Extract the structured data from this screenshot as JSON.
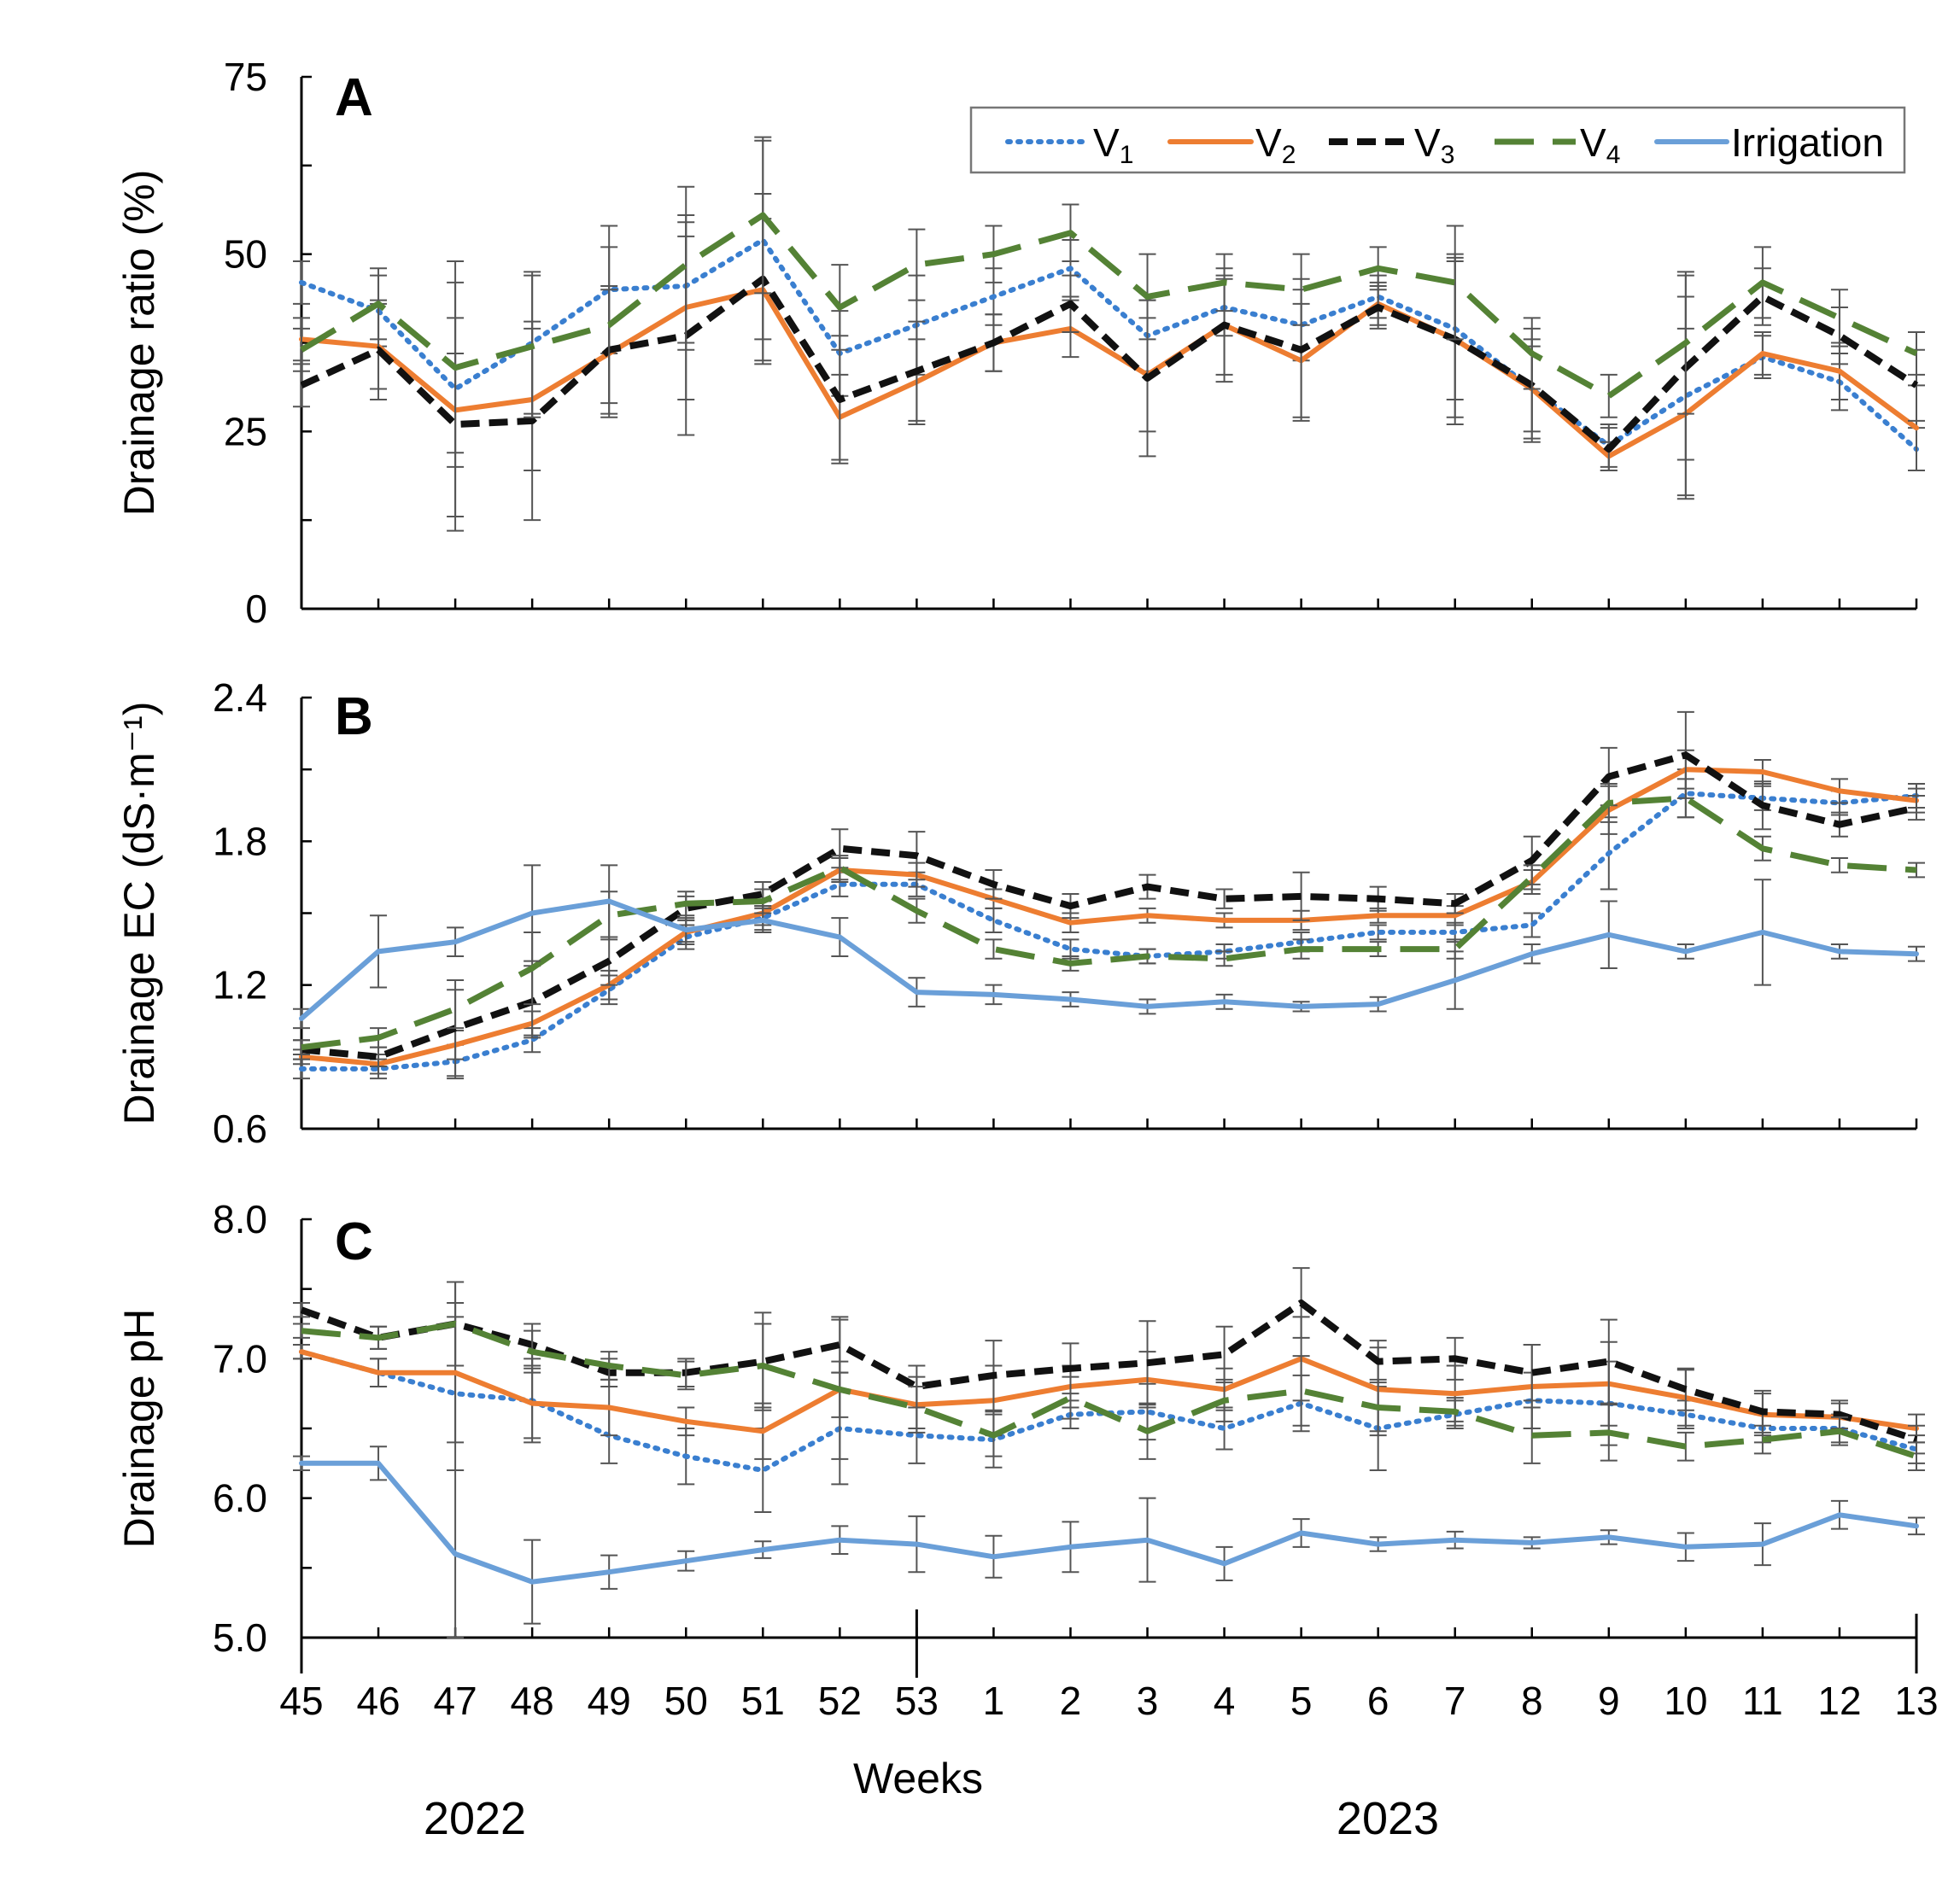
{
  "colors": {
    "V1": "#3a7fd0",
    "V2": "#ed7d31",
    "V3": "#111111",
    "V4": "#548235",
    "Irrigation": "#6a9fd8",
    "axis": "#000000",
    "errorbar": "#555555"
  },
  "xaxis": {
    "title": "Weeks",
    "weeks": [
      "45",
      "46",
      "47",
      "48",
      "49",
      "50",
      "51",
      "52",
      "53",
      "1",
      "2",
      "3",
      "4",
      "5",
      "6",
      "7",
      "8",
      "9",
      "10",
      "11",
      "12",
      "13"
    ],
    "years": [
      "2022",
      "2023"
    ]
  },
  "legend": {
    "items": [
      {
        "key": "V1",
        "label": "V",
        "sub": "1"
      },
      {
        "key": "V2",
        "label": "V",
        "sub": "2"
      },
      {
        "key": "V3",
        "label": "V",
        "sub": "3"
      },
      {
        "key": "V4",
        "label": "V",
        "sub": "4"
      },
      {
        "key": "Irrigation",
        "label": "Irrigation",
        "sub": ""
      }
    ]
  },
  "chart_data": [
    {
      "type": "line",
      "panel": "A",
      "ylabel": "Drainage ratio (%)",
      "ylim": [
        0,
        75
      ],
      "yticks": [
        "0",
        "25",
        "50",
        "75"
      ],
      "ytick_values": [
        0,
        25,
        50,
        75
      ],
      "minor_step": 12.5,
      "series": [
        {
          "name": "V1",
          "values": [
            46,
            42,
            31,
            37.5,
            45,
            45.5,
            52,
            36,
            40,
            44,
            48,
            38.5,
            42.5,
            40,
            44,
            39.5,
            31,
            23,
            30,
            35.5,
            32,
            22.5
          ],
          "err": [
            3,
            5,
            18,
            10,
            9,
            9,
            14,
            6,
            7,
            4,
            4,
            5,
            4,
            5,
            3,
            10,
            7,
            3,
            14,
            3,
            4,
            3
          ]
        },
        {
          "name": "V2",
          "values": [
            38,
            37,
            28,
            29.5,
            36,
            42.5,
            45,
            27,
            32,
            37.5,
            39.5,
            33,
            40,
            35,
            43,
            38,
            31,
            21.5,
            27.5,
            36,
            33.5,
            25.5
          ],
          "err": [
            3,
            6,
            8,
            10,
            9,
            13,
            10,
            6,
            6,
            4,
            4,
            8,
            7,
            8,
            3,
            11,
            6,
            2,
            12,
            3,
            4,
            6
          ]
        },
        {
          "name": "V3",
          "values": [
            31.5,
            36.5,
            26,
            26.5,
            36.5,
            38.5,
            46.5,
            29.5,
            33.5,
            37.5,
            43,
            32.5,
            40,
            36.5,
            42.5,
            38,
            31.5,
            22.5,
            34,
            44,
            38.5,
            31.5
          ],
          "err": [
            3,
            7,
            15,
            14,
            9,
            14,
            12,
            9,
            7,
            4,
            4,
            11,
            8,
            10,
            3,
            12,
            8,
            3,
            13,
            4,
            4,
            5
          ]
        },
        {
          "name": "V4",
          "values": [
            36.5,
            43,
            34,
            37,
            40,
            48.5,
            55.5,
            42.5,
            48.5,
            50,
            53,
            44,
            46,
            45,
            48,
            46,
            36,
            30,
            37.5,
            46,
            41,
            36
          ],
          "err": [
            3,
            5,
            12,
            10,
            11,
            11,
            11,
            6,
            5,
            4,
            4,
            6,
            4,
            5,
            3,
            8,
            5,
            3,
            10,
            5,
            4,
            3
          ]
        }
      ]
    },
    {
      "type": "line",
      "panel": "B",
      "ylabel": "Drainage EC (dS·m⁻¹)",
      "ylim": [
        0.6,
        2.4
      ],
      "yticks": [
        "0.6",
        "1.2",
        "1.8",
        "2.4"
      ],
      "ytick_values": [
        0.6,
        1.2,
        1.8,
        2.4
      ],
      "minor_step": 0.3,
      "series": [
        {
          "name": "V1",
          "values": [
            0.85,
            0.85,
            0.88,
            0.97,
            1.18,
            1.4,
            1.48,
            1.62,
            1.62,
            1.47,
            1.35,
            1.32,
            1.34,
            1.38,
            1.42,
            1.42,
            1.45,
            1.75,
            2.0,
            1.98,
            1.96,
            1.99
          ],
          "err": [
            0.04,
            0.04,
            0.07,
            0.05,
            0.06,
            0.05,
            0.05,
            0.05,
            0.05,
            0.05,
            0.04,
            0.03,
            0.03,
            0.04,
            0.03,
            0.04,
            0.05,
            0.15,
            0.1,
            0.05,
            0.05,
            0.05
          ]
        },
        {
          "name": "V2",
          "values": [
            0.9,
            0.87,
            0.95,
            1.04,
            1.2,
            1.42,
            1.5,
            1.68,
            1.66,
            1.56,
            1.46,
            1.49,
            1.47,
            1.47,
            1.49,
            1.49,
            1.63,
            1.93,
            2.1,
            2.09,
            2.01,
            1.97
          ],
          "err": [
            0.03,
            0.04,
            0.06,
            0.05,
            0.06,
            0.05,
            0.05,
            0.05,
            0.05,
            0.04,
            0.04,
            0.03,
            0.03,
            0.04,
            0.03,
            0.04,
            0.05,
            0.1,
            0.08,
            0.05,
            0.05,
            0.05
          ]
        },
        {
          "name": "V3",
          "values": [
            0.93,
            0.9,
            1.02,
            1.13,
            1.3,
            1.52,
            1.58,
            1.77,
            1.74,
            1.62,
            1.53,
            1.61,
            1.56,
            1.57,
            1.56,
            1.54,
            1.72,
            2.07,
            2.16,
            1.95,
            1.87,
            1.94
          ],
          "err": [
            0.04,
            0.04,
            0.2,
            0.15,
            0.1,
            0.05,
            0.05,
            0.08,
            0.1,
            0.06,
            0.05,
            0.05,
            0.04,
            0.1,
            0.05,
            0.04,
            0.1,
            0.12,
            0.18,
            0.1,
            0.05,
            0.05
          ]
        },
        {
          "name": "V4",
          "values": [
            0.94,
            0.98,
            1.1,
            1.27,
            1.49,
            1.54,
            1.55,
            1.69,
            1.51,
            1.35,
            1.29,
            1.32,
            1.31,
            1.35,
            1.35,
            1.35,
            1.65,
            1.96,
            1.98,
            1.77,
            1.7,
            1.68
          ],
          "err": [
            0.03,
            0.04,
            0.08,
            0.15,
            0.1,
            0.05,
            0.05,
            0.05,
            0.05,
            0.04,
            0.03,
            0.03,
            0.03,
            0.04,
            0.03,
            0.04,
            0.05,
            0.08,
            0.08,
            0.05,
            0.03,
            0.03
          ]
        },
        {
          "name": "Irrigation",
          "values": [
            1.06,
            1.34,
            1.38,
            1.5,
            1.55,
            1.43,
            1.47,
            1.4,
            1.17,
            1.16,
            1.14,
            1.11,
            1.13,
            1.11,
            1.12,
            1.22,
            1.33,
            1.41,
            1.34,
            1.42,
            1.34,
            1.33
          ],
          "err": [
            0.04,
            0.15,
            0.06,
            0.2,
            0.15,
            0.05,
            0.05,
            0.08,
            0.06,
            0.04,
            0.03,
            0.03,
            0.03,
            0.02,
            0.03,
            0.12,
            0.04,
            0.14,
            0.03,
            0.22,
            0.03,
            0.03
          ]
        }
      ]
    },
    {
      "type": "line",
      "panel": "C",
      "ylabel": "Drainage pH",
      "ylim": [
        5.0,
        8.0
      ],
      "yticks": [
        "5.0",
        "6.0",
        "7.0",
        "8.0"
      ],
      "ytick_values": [
        5.0,
        6.0,
        7.0,
        8.0
      ],
      "minor_step": 0.5,
      "series": [
        {
          "name": "V1",
          "values": [
            7.05,
            6.9,
            6.75,
            6.7,
            6.45,
            6.3,
            6.2,
            6.5,
            6.45,
            6.42,
            6.6,
            6.62,
            6.5,
            6.68,
            6.5,
            6.6,
            6.7,
            6.68,
            6.6,
            6.5,
            6.5,
            6.35
          ],
          "err": [
            0.05,
            0.1,
            0.55,
            0.3,
            0.2,
            0.2,
            0.3,
            0.4,
            0.2,
            0.2,
            0.1,
            0.2,
            0.15,
            0.2,
            0.3,
            0.1,
            0.2,
            0.3,
            0.1,
            0.1,
            0.1,
            0.1
          ]
        },
        {
          "name": "V2",
          "values": [
            7.05,
            6.9,
            6.9,
            6.68,
            6.65,
            6.55,
            6.48,
            6.78,
            6.67,
            6.7,
            6.8,
            6.85,
            6.78,
            7.0,
            6.78,
            6.75,
            6.8,
            6.82,
            6.72,
            6.6,
            6.58,
            6.5
          ],
          "err": [
            0.05,
            0.1,
            0.5,
            0.25,
            0.2,
            0.1,
            0.2,
            0.5,
            0.2,
            0.25,
            0.15,
            0.2,
            0.15,
            0.3,
            0.3,
            0.2,
            0.3,
            0.3,
            0.2,
            0.15,
            0.1,
            0.1
          ]
        },
        {
          "name": "V3",
          "values": [
            7.35,
            7.15,
            7.25,
            7.1,
            6.9,
            6.9,
            6.98,
            7.1,
            6.8,
            6.88,
            6.93,
            6.97,
            7.03,
            7.4,
            6.98,
            7.0,
            6.9,
            6.98,
            6.78,
            6.62,
            6.6,
            6.42
          ],
          "err": [
            0.05,
            0.08,
            0.3,
            0.15,
            0.1,
            0.1,
            0.35,
            0.2,
            0.15,
            0.25,
            0.18,
            0.3,
            0.2,
            0.25,
            0.15,
            0.15,
            0.2,
            0.3,
            0.15,
            0.15,
            0.1,
            0.1
          ]
        },
        {
          "name": "V4",
          "values": [
            7.2,
            7.15,
            7.25,
            7.05,
            6.95,
            6.88,
            6.95,
            6.78,
            6.65,
            6.45,
            6.72,
            6.48,
            6.7,
            6.77,
            6.65,
            6.62,
            6.45,
            6.47,
            6.37,
            6.42,
            6.48,
            6.3
          ],
          "err": [
            0.05,
            0.08,
            0.3,
            0.15,
            0.1,
            0.1,
            0.3,
            0.2,
            0.15,
            0.15,
            0.15,
            0.2,
            0.15,
            0.25,
            0.2,
            0.1,
            0.2,
            0.2,
            0.1,
            0.1,
            0.1,
            0.1
          ]
        },
        {
          "name": "Irrigation",
          "values": [
            6.25,
            6.25,
            5.6,
            5.4,
            5.47,
            5.55,
            5.63,
            5.7,
            5.67,
            5.58,
            5.65,
            5.7,
            5.53,
            5.75,
            5.67,
            5.7,
            5.68,
            5.72,
            5.65,
            5.67,
            5.88,
            5.8
          ],
          "err": [
            0.05,
            0.12,
            0.6,
            0.3,
            0.12,
            0.07,
            0.06,
            0.1,
            0.2,
            0.15,
            0.18,
            0.3,
            0.12,
            0.1,
            0.05,
            0.06,
            0.04,
            0.05,
            0.1,
            0.15,
            0.1,
            0.06
          ]
        }
      ]
    }
  ]
}
